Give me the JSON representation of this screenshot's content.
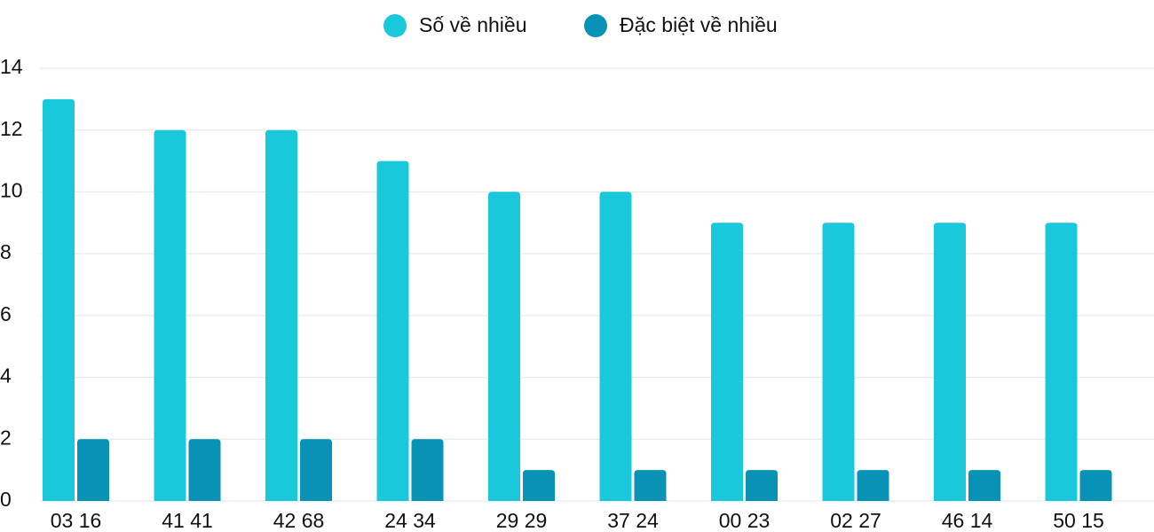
{
  "chart_data": {
    "type": "bar",
    "categories": [
      "03 16",
      "41 41",
      "42 68",
      "24 34",
      "29 29",
      "37 24",
      "00 23",
      "02 27",
      "46 14",
      "50 15"
    ],
    "series": [
      {
        "name": "Số về nhiều",
        "color": "#1ac8db",
        "values": [
          13,
          12,
          12,
          11,
          10,
          10,
          9,
          9,
          9,
          9
        ]
      },
      {
        "name": "Đặc biệt về nhiều",
        "color": "#0892b5",
        "values": [
          2,
          2,
          2,
          2,
          1,
          1,
          1,
          1,
          1,
          1
        ]
      }
    ],
    "ylim": [
      0,
      14
    ],
    "yticks": [
      0,
      2,
      4,
      6,
      8,
      10,
      12,
      14
    ],
    "grid": true,
    "legend": "top"
  }
}
